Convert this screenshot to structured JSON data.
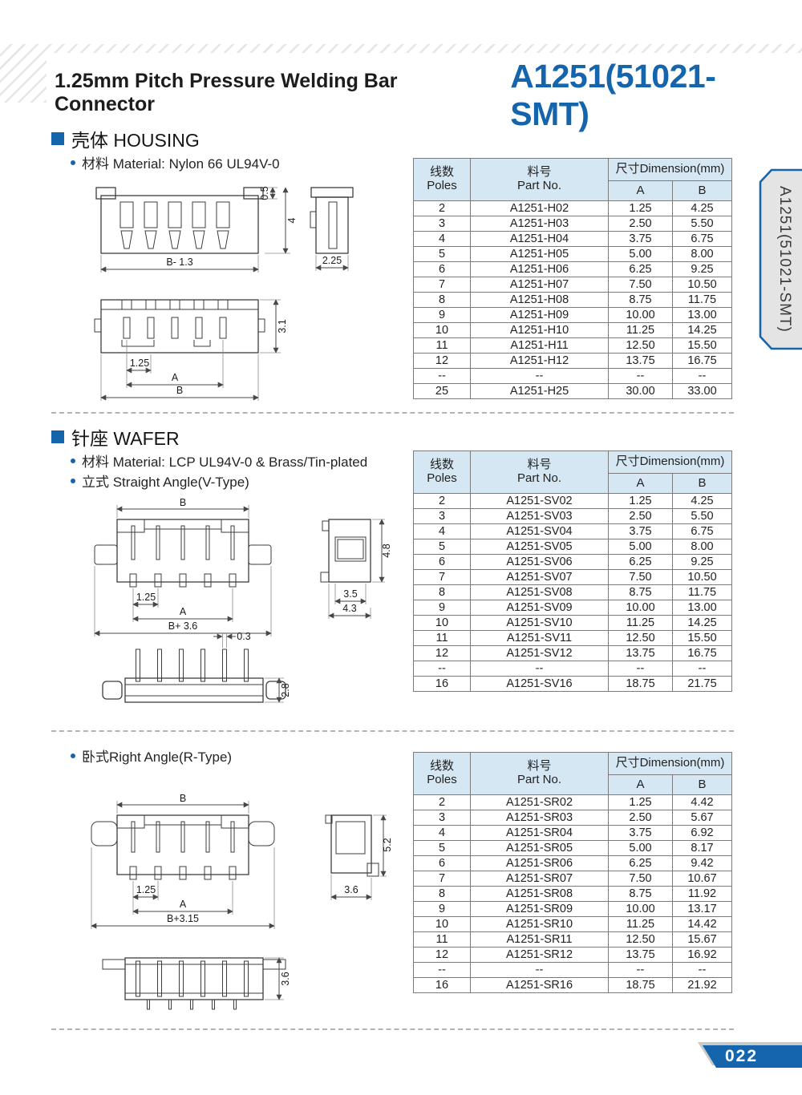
{
  "header": {
    "product_title": "1.25mm Pitch Pressure Welding Bar Connector",
    "part_code": "A1251(51021-SMT)"
  },
  "side_tab": {
    "label": "A1251(51021-SMT)"
  },
  "footer": {
    "page_number": "022"
  },
  "colors": {
    "accent": "#1565ad",
    "table_header_bg": "#d6e7f4"
  },
  "table_header": {
    "poles_cn": "线数",
    "poles_en": "Poles",
    "part_cn": "料号",
    "part_en": "Part No.",
    "dimension": "尺寸Dimension(mm)",
    "col_a": "A",
    "col_b": "B"
  },
  "sections": {
    "housing": {
      "heading": "壳体 HOUSING",
      "bullet_material": "材料 Material: Nylon 66 UL94V-0",
      "rows": [
        [
          "2",
          "A1251-H02",
          "1.25",
          "4.25"
        ],
        [
          "3",
          "A1251-H03",
          "2.50",
          "5.50"
        ],
        [
          "4",
          "A1251-H04",
          "3.75",
          "6.75"
        ],
        [
          "5",
          "A1251-H05",
          "5.00",
          "8.00"
        ],
        [
          "6",
          "A1251-H06",
          "6.25",
          "9.25"
        ],
        [
          "7",
          "A1251-H07",
          "7.50",
          "10.50"
        ],
        [
          "8",
          "A1251-H08",
          "8.75",
          "11.75"
        ],
        [
          "9",
          "A1251-H09",
          "10.00",
          "13.00"
        ],
        [
          "10",
          "A1251-H10",
          "11.25",
          "14.25"
        ],
        [
          "11",
          "A1251-H11",
          "12.50",
          "15.50"
        ],
        [
          "12",
          "A1251-H12",
          "13.75",
          "16.75"
        ],
        [
          "--",
          "--",
          "--",
          "--"
        ],
        [
          "25",
          "A1251-H25",
          "30.00",
          "33.00"
        ]
      ]
    },
    "wafer": {
      "heading": "针座 WAFER",
      "bullet_material": "材料 Material: LCP UL94V-0 & Brass/Tin-plated",
      "bullet_vtype": "立式 Straight Angle(V-Type)",
      "bullet_rtype": "卧式Right Angle(R-Type)",
      "v_rows": [
        [
          "2",
          "A1251-SV02",
          "1.25",
          "4.25"
        ],
        [
          "3",
          "A1251-SV03",
          "2.50",
          "5.50"
        ],
        [
          "4",
          "A1251-SV04",
          "3.75",
          "6.75"
        ],
        [
          "5",
          "A1251-SV05",
          "5.00",
          "8.00"
        ],
        [
          "6",
          "A1251-SV06",
          "6.25",
          "9.25"
        ],
        [
          "7",
          "A1251-SV07",
          "7.50",
          "10.50"
        ],
        [
          "8",
          "A1251-SV08",
          "8.75",
          "11.75"
        ],
        [
          "9",
          "A1251-SV09",
          "10.00",
          "13.00"
        ],
        [
          "10",
          "A1251-SV10",
          "11.25",
          "14.25"
        ],
        [
          "11",
          "A1251-SV11",
          "12.50",
          "15.50"
        ],
        [
          "12",
          "A1251-SV12",
          "13.75",
          "16.75"
        ],
        [
          "--",
          "--",
          "--",
          "--"
        ],
        [
          "16",
          "A1251-SV16",
          "18.75",
          "21.75"
        ]
      ],
      "r_rows": [
        [
          "2",
          "A1251-SR02",
          "1.25",
          "4.42"
        ],
        [
          "3",
          "A1251-SR03",
          "2.50",
          "5.67"
        ],
        [
          "4",
          "A1251-SR04",
          "3.75",
          "6.92"
        ],
        [
          "5",
          "A1251-SR05",
          "5.00",
          "8.17"
        ],
        [
          "6",
          "A1251-SR06",
          "6.25",
          "9.42"
        ],
        [
          "7",
          "A1251-SR07",
          "7.50",
          "10.67"
        ],
        [
          "8",
          "A1251-SR08",
          "8.75",
          "11.92"
        ],
        [
          "9",
          "A1251-SR09",
          "10.00",
          "13.17"
        ],
        [
          "10",
          "A1251-SR10",
          "11.25",
          "14.42"
        ],
        [
          "11",
          "A1251-SR11",
          "12.50",
          "15.67"
        ],
        [
          "12",
          "A1251-SR12",
          "13.75",
          "16.92"
        ],
        [
          "--",
          "--",
          "--",
          "--"
        ],
        [
          "16",
          "A1251-SR16",
          "18.75",
          "21.92"
        ]
      ]
    }
  },
  "drawings": {
    "housing": {
      "dim_front_width": "B- 1.3",
      "dim_ear_height": "0.5",
      "dim_body_height": "4",
      "dim_side_width": "2.25",
      "dim_pitch": "1.25",
      "dim_a": "A",
      "dim_b": "B",
      "dim_bottom_height": "3.1"
    },
    "wafer_v": {
      "dim_b": "B",
      "dim_pitch": "1.25",
      "dim_a": "A",
      "dim_total": "B+ 3.6",
      "dim_side_height": "4.8",
      "dim_side_w1": "3.5",
      "dim_side_w2": "4.3",
      "dim_pin": "0.3",
      "dim_profile_height": "2.8"
    },
    "wafer_r": {
      "dim_b": "B",
      "dim_pitch": "1.25",
      "dim_a": "A",
      "dim_total": "B+3.15",
      "dim_side_height": "5.2",
      "dim_side_width": "3.6",
      "dim_profile_height": "3.6"
    }
  }
}
